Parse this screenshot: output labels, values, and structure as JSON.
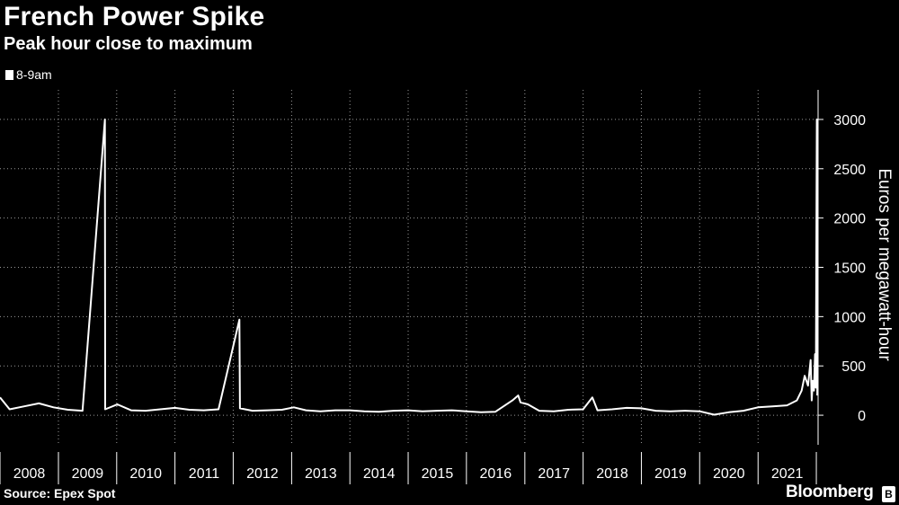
{
  "header": {
    "title": "French Power Spike",
    "subtitle": "Peak hour close to maximum"
  },
  "footer": {
    "source": "Source: Epex Spot",
    "brand": "Bloomberg",
    "brand_mark": "B"
  },
  "colors": {
    "background": "#000000",
    "series": "#ffffff",
    "grid": "#9a9a9a"
  },
  "chart_data": {
    "type": "line",
    "title": "French Power Spike",
    "subtitle": "Peak hour close to maximum",
    "ylabel": "Euros per megawatt-hour",
    "xlabel": "",
    "ylim": [
      -300,
      3300
    ],
    "xlim": [
      "2008-01-01",
      "2022-01-12"
    ],
    "y_ticks": [
      0,
      500,
      1000,
      1500,
      2000,
      2500,
      3000
    ],
    "x_tick_labels": [
      "2008",
      "2009",
      "2010",
      "2011",
      "2012",
      "2013",
      "2014",
      "2015",
      "2016",
      "2017",
      "2018",
      "2019",
      "2020",
      "2021"
    ],
    "y_axis_position": "right",
    "grid": true,
    "legend": "top-left",
    "series": [
      {
        "name": "8-9am",
        "points": [
          [
            "2008-01-01",
            180
          ],
          [
            "2008-03-01",
            60
          ],
          [
            "2008-06-01",
            90
          ],
          [
            "2008-09-01",
            120
          ],
          [
            "2008-12-01",
            80
          ],
          [
            "2009-03-01",
            55
          ],
          [
            "2009-06-01",
            45
          ],
          [
            "2009-10-19",
            3000
          ],
          [
            "2009-10-21",
            60
          ],
          [
            "2010-01-05",
            110
          ],
          [
            "2010-04-01",
            50
          ],
          [
            "2010-07-01",
            45
          ],
          [
            "2010-10-01",
            60
          ],
          [
            "2011-01-01",
            75
          ],
          [
            "2011-04-01",
            55
          ],
          [
            "2011-07-01",
            50
          ],
          [
            "2011-10-01",
            60
          ],
          [
            "2012-02-09",
            970
          ],
          [
            "2012-02-12",
            70
          ],
          [
            "2012-05-01",
            45
          ],
          [
            "2012-08-01",
            50
          ],
          [
            "2012-11-01",
            55
          ],
          [
            "2013-01-15",
            80
          ],
          [
            "2013-04-01",
            50
          ],
          [
            "2013-07-01",
            40
          ],
          [
            "2013-10-01",
            50
          ],
          [
            "2014-01-01",
            50
          ],
          [
            "2014-04-01",
            40
          ],
          [
            "2014-07-01",
            35
          ],
          [
            "2014-10-01",
            45
          ],
          [
            "2015-01-01",
            50
          ],
          [
            "2015-04-01",
            40
          ],
          [
            "2015-07-01",
            45
          ],
          [
            "2015-10-01",
            50
          ],
          [
            "2016-01-01",
            40
          ],
          [
            "2016-04-01",
            30
          ],
          [
            "2016-07-01",
            35
          ],
          [
            "2016-10-15",
            150
          ],
          [
            "2016-11-20",
            200
          ],
          [
            "2016-12-05",
            130
          ],
          [
            "2017-01-20",
            110
          ],
          [
            "2017-04-01",
            45
          ],
          [
            "2017-07-01",
            40
          ],
          [
            "2017-10-01",
            55
          ],
          [
            "2018-01-01",
            60
          ],
          [
            "2018-02-28",
            180
          ],
          [
            "2018-04-01",
            50
          ],
          [
            "2018-07-01",
            60
          ],
          [
            "2018-10-01",
            75
          ],
          [
            "2019-01-01",
            70
          ],
          [
            "2019-04-01",
            45
          ],
          [
            "2019-07-01",
            40
          ],
          [
            "2019-10-01",
            45
          ],
          [
            "2020-01-01",
            40
          ],
          [
            "2020-04-01",
            5
          ],
          [
            "2020-07-01",
            30
          ],
          [
            "2020-10-01",
            45
          ],
          [
            "2021-01-01",
            80
          ],
          [
            "2021-04-01",
            90
          ],
          [
            "2021-07-01",
            100
          ],
          [
            "2021-09-01",
            150
          ],
          [
            "2021-10-01",
            250
          ],
          [
            "2021-10-20",
            400
          ],
          [
            "2021-11-10",
            300
          ],
          [
            "2021-11-26",
            560
          ],
          [
            "2021-12-03",
            150
          ],
          [
            "2021-12-10",
            350
          ],
          [
            "2021-12-17",
            250
          ],
          [
            "2021-12-24",
            620
          ],
          [
            "2021-12-29",
            280
          ],
          [
            "2022-01-04",
            3000
          ],
          [
            "2022-01-07",
            200
          ]
        ]
      }
    ]
  }
}
